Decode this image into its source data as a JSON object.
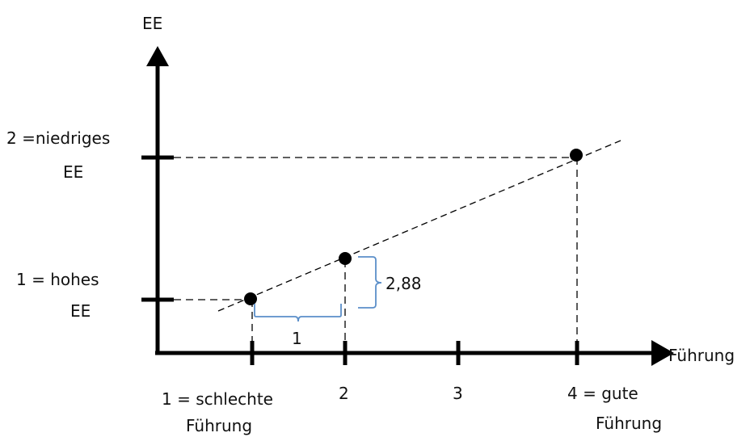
{
  "axes": {
    "y_title": "EE",
    "x_title": "Führung"
  },
  "y_ticks": [
    {
      "id": "y1",
      "lines": [
        "1 =  hohes",
        "EE"
      ]
    },
    {
      "id": "y2",
      "lines": [
        "2 =niedriges",
        "EE"
      ]
    }
  ],
  "x_ticks": [
    {
      "id": "x1",
      "lines": [
        "1 = schlechte",
        "Führung"
      ]
    },
    {
      "id": "x2",
      "lines": [
        "2"
      ]
    },
    {
      "id": "x3",
      "lines": [
        "3"
      ]
    },
    {
      "id": "x4",
      "lines": [
        "4 =  gute",
        "Führung"
      ]
    }
  ],
  "annotations": {
    "run_label": "1",
    "rise_label": "2,88"
  },
  "colors": {
    "axis": "#000000",
    "guides": "#000000",
    "brace": "#5b8fc9"
  }
}
